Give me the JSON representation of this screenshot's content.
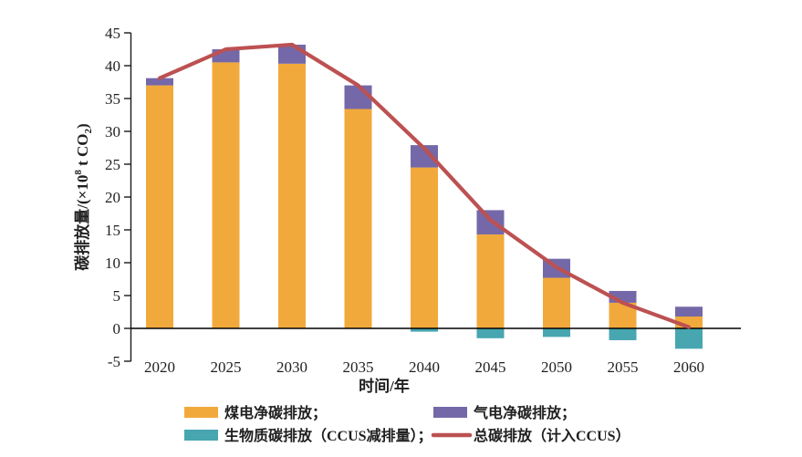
{
  "chart_data": {
    "type": "bar",
    "subtype": "stacked-bar-with-line-overlay",
    "x": [
      "2020",
      "2025",
      "2030",
      "2035",
      "2040",
      "2045",
      "2050",
      "2055",
      "2060"
    ],
    "series": [
      {
        "name": "煤电净碳排放",
        "kind": "bar",
        "color": "#F2A93B",
        "values": [
          37.0,
          40.5,
          40.3,
          33.4,
          24.5,
          14.3,
          7.7,
          3.9,
          1.8
        ]
      },
      {
        "name": "气电净碳排放",
        "kind": "bar",
        "color": "#7568A8",
        "values": [
          1.1,
          2.0,
          2.9,
          3.6,
          3.4,
          3.7,
          2.9,
          1.8,
          1.5
        ]
      },
      {
        "name": "生物质碳排放（CCUS减排量）",
        "kind": "bar",
        "color": "#47A6B0",
        "values": [
          0,
          0,
          0,
          0,
          -0.5,
          -1.5,
          -1.3,
          -1.8,
          -3.1
        ]
      },
      {
        "name": "总碳排放（计入CCUS）",
        "kind": "line",
        "color": "#BC5152",
        "values": [
          38.1,
          42.5,
          43.2,
          37.0,
          27.4,
          16.5,
          9.3,
          3.9,
          0.2
        ]
      }
    ],
    "xlabel": "时间/年",
    "ylabel": "碳排放量/(×10⁸ t CO₂)",
    "ylabel_parts": {
      "pre": "碳排放量/(×10",
      "sup": "8",
      "mid": " t CO",
      "sub": "2",
      "post": ")"
    },
    "ylim": [
      -5,
      45
    ],
    "yticks": [
      45,
      40,
      35,
      30,
      25,
      20,
      15,
      10,
      5,
      0,
      -5
    ],
    "grid": false,
    "legend_position": "bottom-two-columns",
    "legend": {
      "items": [
        {
          "label": "煤电净碳排放；",
          "swatch": "rect",
          "color": "#F2A93B",
          "row": 0,
          "col": 0
        },
        {
          "label": "气电净碳排放；",
          "swatch": "rect",
          "color": "#7568A8",
          "row": 0,
          "col": 1
        },
        {
          "label": "生物质碳排放（CCUS减排量）；",
          "swatch": "rect",
          "color": "#47A6B0",
          "row": 1,
          "col": 0
        },
        {
          "label": "总碳排放（计入CCUS）",
          "swatch": "line",
          "color": "#BC5152",
          "row": 1,
          "col": 1
        }
      ]
    },
    "colors": {
      "axis": "#1a1a1a",
      "zero_line": "#000000",
      "text": "#1f1f1f"
    }
  }
}
